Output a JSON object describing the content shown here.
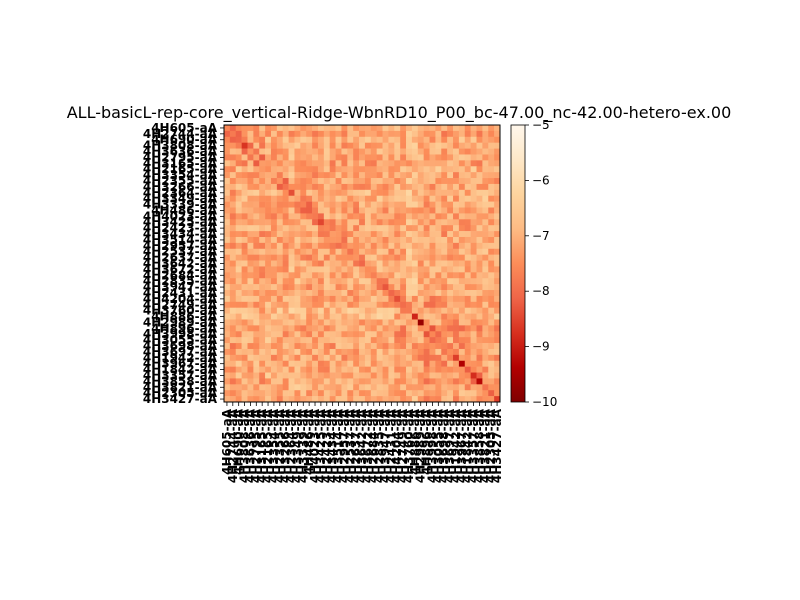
{
  "chart_data": {
    "type": "heatmap",
    "title": "ALL-basicL-rep-core_vertical-Ridge-WbnRD10_P00_bc-47.00_nc-42.00-hetero-ex.00",
    "xlabel": "",
    "ylabel": "",
    "colormap": "OrRd_r",
    "color_range": [
      -10,
      -5
    ],
    "colorbar_ticks": [
      -5,
      -6,
      -7,
      -8,
      -9,
      -10
    ],
    "n_rows": 47,
    "n_cols": 47,
    "row_labels": [
      "4H605-aA",
      "4H2744-aA",
      "4H690-aA",
      "4H3808-aA",
      "4H3636-aA",
      "4H2795-aA",
      "4H3165-aA",
      "4H2165-aA",
      "4H3354-aA",
      "4H2355-aA",
      "4H3266-aA",
      "4H2364-aA",
      "4H3349-aA",
      "4H3339-aA",
      "4H486-aA",
      "4H4023-aA",
      "4H3425-aA",
      "4H2423-aA",
      "4H3434-aA",
      "4H3514-aA",
      "4H2957-aA",
      "4H2537-aA",
      "4H2637-aA",
      "4H3642-aA",
      "4H3672-aA",
      "4H2684-aA",
      "4H2835-aA",
      "4H3947-aA",
      "4H2431-aA",
      "4H4204-aA",
      "4H2749-aA",
      "4H3760-aA",
      "4H886-aA",
      "4H2989-aA",
      "4H896-aA",
      "4H3998-aA",
      "4H3055-aA",
      "4H3698-aA",
      "4H3697-aA",
      "4H1942-aA",
      "4H3967-aA",
      "4H1842-aA",
      "4H3357-aA",
      "4H3858-aA",
      "4H3821-aA",
      "4H2305-aA",
      "4H3427-aA"
    ],
    "col_labels": [
      "4H605-aA",
      "4H2744-aA",
      "4H690-aA",
      "4H3808-aA",
      "4H3636-aA",
      "4H2795-aA",
      "4H3165-aA",
      "4H2165-aA",
      "4H3354-aA",
      "4H2355-aA",
      "4H3266-aA",
      "4H2364-aA",
      "4H3349-aA",
      "4H3339-aA",
      "4H486-aA",
      "4H4023-aA",
      "4H3425-aA",
      "4H2423-aA",
      "4H3434-aA",
      "4H3514-aA",
      "4H2957-aA",
      "4H2537-aA",
      "4H2637-aA",
      "4H3642-aA",
      "4H3672-aA",
      "4H2684-aA",
      "4H2835-aA",
      "4H3947-aA",
      "4H2431-aA",
      "4H4204-aA",
      "4H2749-aA",
      "4H3760-aA",
      "4H886-aA",
      "4H2989-aA",
      "4H896-aA",
      "4H3998-aA",
      "4H3055-aA",
      "4H3698-aA",
      "4H3697-aA",
      "4H1942-aA",
      "4H3967-aA",
      "4H1842-aA",
      "4H3357-aA",
      "4H3858-aA",
      "4H3821-aA",
      "4H2305-aA",
      "4H3427-aA"
    ],
    "values_note": "Cell values estimated from color: off-diagonal mostly -6.5 to -7.8; diagonal band darker, roughly -8 to -9.8 near rows 29-42.",
    "diagonal_values": [
      -7.6,
      -7.8,
      -8.1,
      -8.7,
      -7.4,
      -7.2,
      -7.3,
      -7.5,
      -7.1,
      -7.4,
      -7.9,
      -8.4,
      -7.2,
      -7.7,
      -8.2,
      -7.8,
      -8.5,
      -7.6,
      -7.3,
      -7.4,
      -7.7,
      -7.9,
      -7.4,
      -8.1,
      -7.5,
      -7.7,
      -7.9,
      -8.3,
      -8.1,
      -8.4,
      -8.0,
      -7.8,
      -8.9,
      -9.7,
      -7.4,
      -7.6,
      -7.8,
      -7.7,
      -7.5,
      -8.6,
      -9.4,
      -8.2,
      -8.8,
      -9.3,
      -7.9,
      -8.2,
      -8.6
    ]
  }
}
